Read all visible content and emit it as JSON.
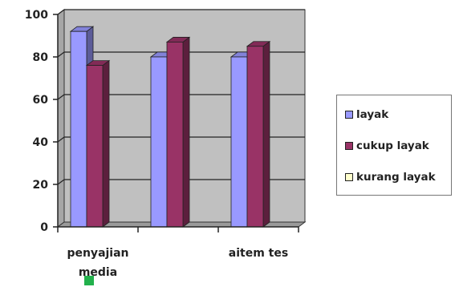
{
  "chart_data": {
    "type": "bar",
    "categories": [
      "penyajian media",
      "",
      "aitem tes"
    ],
    "category_lines": [
      [
        "penyajian",
        "media"
      ],
      [
        ""
      ],
      [
        "aitem tes"
      ]
    ],
    "series": [
      {
        "name": "layak",
        "values": [
          92,
          80,
          80
        ],
        "color": "#9999ff"
      },
      {
        "name": "cukup layak",
        "values": [
          76,
          87,
          85
        ],
        "color": "#993366"
      },
      {
        "name": "kurang layak",
        "values": [
          0,
          0,
          0
        ],
        "color": "#ffffcc"
      }
    ],
    "ylim": [
      0,
      100
    ],
    "yticks": [
      "0",
      "20",
      "40",
      "60",
      "80",
      "100"
    ],
    "grid": true,
    "three_d": true,
    "wall_color": "#c0c0c0",
    "legend_position": "right",
    "title": "",
    "xlabel": "",
    "ylabel": ""
  }
}
